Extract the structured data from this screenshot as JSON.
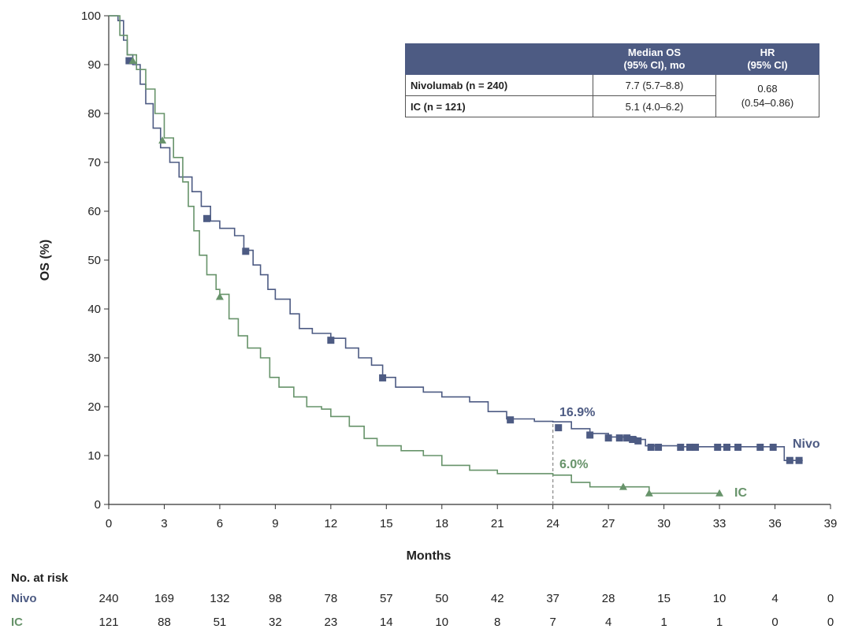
{
  "chart_data": {
    "type": "line",
    "title": "",
    "xlabel": "Months",
    "ylabel": "OS (%)",
    "xlim": [
      0,
      39
    ],
    "ylim": [
      0,
      100
    ],
    "xticks": [
      "0",
      "3",
      "6",
      "9",
      "12",
      "15",
      "18",
      "21",
      "24",
      "27",
      "30",
      "33",
      "36",
      "39"
    ],
    "yticks": [
      "0",
      "10",
      "20",
      "30",
      "40",
      "50",
      "60",
      "70",
      "80",
      "90",
      "100"
    ],
    "series": [
      {
        "name": "Nivo",
        "label": "Nivo",
        "color": "#4d5b83",
        "marker": "square",
        "points": [
          [
            0,
            100
          ],
          [
            0.5,
            99
          ],
          [
            0.8,
            95
          ],
          [
            1.0,
            92
          ],
          [
            1.3,
            90
          ],
          [
            1.7,
            86
          ],
          [
            2.0,
            82
          ],
          [
            2.4,
            77
          ],
          [
            2.8,
            73
          ],
          [
            3.3,
            70
          ],
          [
            3.8,
            67
          ],
          [
            4.5,
            64
          ],
          [
            5.0,
            61
          ],
          [
            5.5,
            58
          ],
          [
            6.0,
            56.5
          ],
          [
            6.8,
            55
          ],
          [
            7.3,
            52
          ],
          [
            7.8,
            49
          ],
          [
            8.2,
            47
          ],
          [
            8.6,
            44
          ],
          [
            9.0,
            42
          ],
          [
            9.8,
            39
          ],
          [
            10.3,
            36
          ],
          [
            11.0,
            35
          ],
          [
            12.0,
            34
          ],
          [
            12.8,
            32
          ],
          [
            13.5,
            30
          ],
          [
            14.2,
            28.5
          ],
          [
            14.8,
            26
          ],
          [
            15.5,
            24
          ],
          [
            17.0,
            23
          ],
          [
            18.0,
            22
          ],
          [
            19.5,
            21
          ],
          [
            20.5,
            19
          ],
          [
            21.5,
            17.5
          ],
          [
            23.0,
            17
          ],
          [
            24.0,
            16.9
          ],
          [
            25.0,
            15.5
          ],
          [
            26.0,
            14.5
          ],
          [
            27.0,
            13.8
          ],
          [
            28.5,
            13.3
          ],
          [
            29.0,
            12
          ],
          [
            31.0,
            11.8
          ],
          [
            36.0,
            11.8
          ],
          [
            36.5,
            9
          ],
          [
            37.5,
            9
          ]
        ],
        "censors": [
          [
            1.1,
            90.8
          ],
          [
            5.3,
            58.5
          ],
          [
            7.4,
            51.8
          ],
          [
            12.0,
            33.6
          ],
          [
            14.8,
            25.9
          ],
          [
            21.7,
            17.3
          ],
          [
            24.3,
            15.7
          ],
          [
            26.0,
            14.2
          ],
          [
            27.0,
            13.6
          ],
          [
            27.6,
            13.6
          ],
          [
            28.0,
            13.6
          ],
          [
            28.3,
            13.3
          ],
          [
            28.6,
            13.0
          ],
          [
            29.3,
            11.7
          ],
          [
            29.7,
            11.7
          ],
          [
            30.9,
            11.7
          ],
          [
            31.4,
            11.7
          ],
          [
            31.7,
            11.7
          ],
          [
            32.9,
            11.7
          ],
          [
            33.4,
            11.7
          ],
          [
            34.0,
            11.7
          ],
          [
            35.2,
            11.7
          ],
          [
            35.9,
            11.7
          ],
          [
            36.8,
            9.0
          ],
          [
            37.3,
            9.0
          ]
        ]
      },
      {
        "name": "IC",
        "label": "IC",
        "color": "#67936a",
        "marker": "triangle",
        "points": [
          [
            0,
            100
          ],
          [
            0.6,
            96
          ],
          [
            1.0,
            92
          ],
          [
            1.5,
            89
          ],
          [
            2.0,
            85
          ],
          [
            2.5,
            80
          ],
          [
            3.0,
            75
          ],
          [
            3.5,
            71
          ],
          [
            4.0,
            66
          ],
          [
            4.3,
            61
          ],
          [
            4.6,
            56
          ],
          [
            4.9,
            51
          ],
          [
            5.3,
            47
          ],
          [
            5.8,
            44
          ],
          [
            6.0,
            43
          ],
          [
            6.5,
            38
          ],
          [
            7.0,
            34.5
          ],
          [
            7.5,
            32
          ],
          [
            8.2,
            30
          ],
          [
            8.7,
            26
          ],
          [
            9.2,
            24
          ],
          [
            10.0,
            22
          ],
          [
            10.7,
            20
          ],
          [
            11.5,
            19.5
          ],
          [
            12.0,
            18
          ],
          [
            13.0,
            16
          ],
          [
            13.8,
            13.5
          ],
          [
            14.5,
            12
          ],
          [
            15.8,
            11
          ],
          [
            17.0,
            10
          ],
          [
            18.0,
            8
          ],
          [
            19.5,
            7
          ],
          [
            21.0,
            6.3
          ],
          [
            24.0,
            6.0
          ],
          [
            25.0,
            4.5
          ],
          [
            26.0,
            3.6
          ],
          [
            28.0,
            3.6
          ],
          [
            29.2,
            2.3
          ],
          [
            33.0,
            2.3
          ]
        ],
        "censors": [
          [
            1.3,
            90.8
          ],
          [
            2.9,
            74.5
          ],
          [
            6.0,
            42.5
          ],
          [
            27.8,
            3.6
          ],
          [
            29.2,
            2.3
          ],
          [
            33.0,
            2.3
          ]
        ]
      }
    ],
    "annotations": [
      {
        "x": 24,
        "y": 16.9,
        "text": "16.9%",
        "series": "Nivo"
      },
      {
        "x": 24,
        "y": 6.0,
        "text": "6.0%",
        "series": "IC"
      }
    ],
    "reference_line": {
      "x": 24,
      "y_from": 0,
      "y_to": 16.9
    }
  },
  "table": {
    "header": [
      "",
      "Median OS\n(95% CI), mo",
      "HR\n(95% CI)"
    ],
    "rows": [
      {
        "arm": "Nivolumab (n = 240)",
        "median": "7.7 (5.7–8.8)"
      },
      {
        "arm": "IC (n = 121)",
        "median": "5.1 (4.0–6.2)"
      }
    ],
    "hr_line1": "0.68",
    "hr_line2": "(0.54–0.86)"
  },
  "risk_table": {
    "title": "No. at risk",
    "rows": [
      {
        "label": "Nivo",
        "color": "#4d5b83",
        "values": [
          "240",
          "169",
          "132",
          "98",
          "78",
          "57",
          "50",
          "42",
          "37",
          "28",
          "15",
          "10",
          "4",
          "0"
        ]
      },
      {
        "label": "IC",
        "color": "#67936a",
        "values": [
          "121",
          "88",
          "51",
          "32",
          "23",
          "14",
          "10",
          "8",
          "7",
          "4",
          "1",
          "1",
          "0",
          "0"
        ]
      }
    ]
  }
}
